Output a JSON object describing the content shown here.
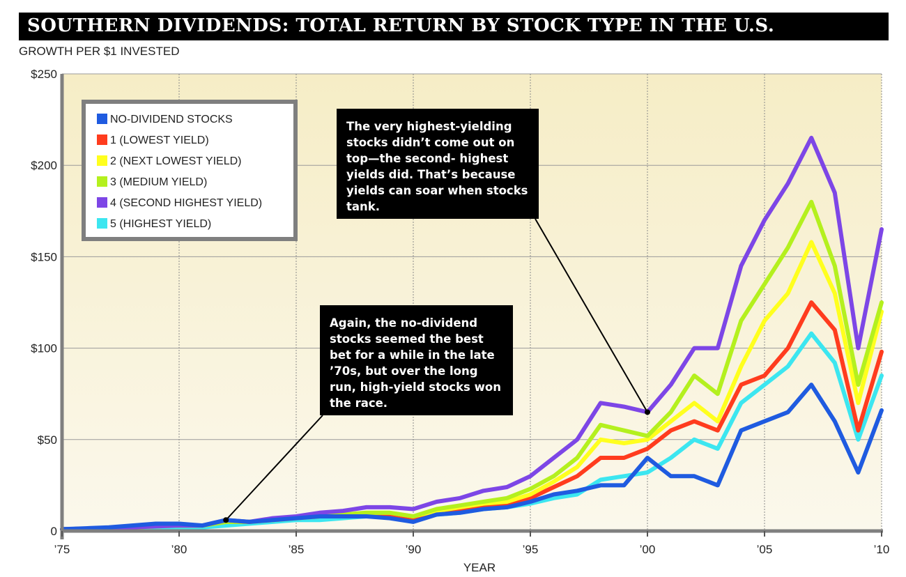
{
  "title": "SOUTHERN DIVIDENDS: TOTAL RETURN BY STOCK TYPE IN THE U.S.",
  "subtitle": "GROWTH PER $1 INVESTED",
  "annotations": {
    "top": "The very highest-yielding stocks didn’t come out on top—the second- highest yields did. That’s because yields can soar when stocks tank.",
    "bottom": "Again, the no-dividend stocks seemed the best bet for a while in the late ’70s, but over the long run, high-yield stocks won the race."
  },
  "chart_data": {
    "type": "line",
    "xlabel": "YEAR",
    "ylabel": "",
    "xlim": [
      1975,
      2010
    ],
    "ylim": [
      0,
      250
    ],
    "grid": true,
    "legend_position": "top-left",
    "x_ticks": [
      {
        "value": 1975,
        "label": "'75"
      },
      {
        "value": 1980,
        "label": "'80"
      },
      {
        "value": 1985,
        "label": "'85"
      },
      {
        "value": 1990,
        "label": "'90"
      },
      {
        "value": 1995,
        "label": "'95"
      },
      {
        "value": 2000,
        "label": "'00"
      },
      {
        "value": 2005,
        "label": "'05"
      },
      {
        "value": 2010,
        "label": "'10"
      }
    ],
    "y_ticks": [
      {
        "value": 0,
        "label": "0"
      },
      {
        "value": 50,
        "label": "$50"
      },
      {
        "value": 100,
        "label": "$100"
      },
      {
        "value": 150,
        "label": "$150"
      },
      {
        "value": 200,
        "label": "$200"
      },
      {
        "value": 250,
        "label": "$250"
      }
    ],
    "x": [
      1975,
      1976,
      1977,
      1978,
      1979,
      1980,
      1981,
      1982,
      1983,
      1984,
      1985,
      1986,
      1987,
      1988,
      1989,
      1990,
      1991,
      1992,
      1993,
      1994,
      1995,
      1996,
      1997,
      1998,
      1999,
      2000,
      2001,
      2002,
      2003,
      2004,
      2005,
      2006,
      2007,
      2008,
      2009,
      2010
    ],
    "series": [
      {
        "name": "NO-DIVIDEND STOCKS",
        "color": "#1f5be0",
        "values": [
          1,
          1.5,
          2,
          3,
          4,
          4,
          3,
          6,
          5,
          6,
          7,
          8,
          8,
          8,
          7,
          5,
          9,
          10,
          12,
          13,
          16,
          20,
          22,
          25,
          25,
          40,
          30,
          30,
          25,
          55,
          60,
          65,
          80,
          60,
          32,
          66
        ]
      },
      {
        "name": "1 (LOWEST YIELD)",
        "color": "#ff3c1e",
        "values": [
          1,
          1.3,
          1.6,
          2,
          2.5,
          3,
          3,
          5,
          5,
          6,
          7,
          8,
          8,
          9,
          9,
          7,
          10,
          12,
          14,
          15,
          18,
          24,
          30,
          40,
          40,
          45,
          55,
          60,
          55,
          80,
          85,
          100,
          125,
          110,
          55,
          98
        ]
      },
      {
        "name": "2 (NEXT LOWEST YIELD)",
        "color": "#ffff1e",
        "values": [
          1,
          1.3,
          1.6,
          2,
          2.5,
          3,
          3,
          5,
          5,
          6,
          7,
          8,
          9,
          10,
          10,
          8,
          11,
          13,
          15,
          16,
          20,
          27,
          35,
          50,
          48,
          50,
          60,
          70,
          60,
          90,
          115,
          130,
          158,
          130,
          70,
          120
        ]
      },
      {
        "name": "3 (MEDIUM YIELD)",
        "color": "#b4f01e",
        "values": [
          1,
          1.3,
          1.6,
          2,
          2.5,
          3,
          3,
          5,
          5,
          6,
          7,
          8,
          9,
          10,
          10,
          8,
          12,
          14,
          16,
          18,
          23,
          30,
          40,
          58,
          55,
          52,
          65,
          85,
          75,
          115,
          135,
          155,
          180,
          145,
          80,
          125
        ]
      },
      {
        "name": "4 (SECOND HIGHEST YIELD)",
        "color": "#7d46e6",
        "values": [
          1,
          1.3,
          1.6,
          2,
          2.5,
          3,
          3,
          6,
          5,
          7,
          8,
          10,
          11,
          13,
          13,
          12,
          16,
          18,
          22,
          24,
          30,
          40,
          50,
          70,
          68,
          65,
          80,
          100,
          100,
          145,
          170,
          190,
          215,
          185,
          100,
          165
        ]
      },
      {
        "name": "5 (HIGHEST YIELD)",
        "color": "#3ce6f0",
        "values": [
          1,
          1.2,
          1.4,
          1.6,
          1.8,
          2,
          2,
          3,
          4,
          5,
          6,
          6,
          7,
          8,
          8,
          6,
          9,
          10,
          12,
          13,
          15,
          18,
          20,
          28,
          30,
          32,
          40,
          50,
          45,
          70,
          80,
          90,
          108,
          92,
          50,
          85
        ]
      }
    ]
  },
  "legend": {
    "items": [
      {
        "label": "NO-DIVIDEND STOCKS",
        "color": "#1f5be0"
      },
      {
        "label": "1 (LOWEST YIELD)",
        "color": "#ff3c1e"
      },
      {
        "label": "2 (NEXT LOWEST YIELD)",
        "color": "#ffff1e"
      },
      {
        "label": "3 (MEDIUM YIELD)",
        "color": "#b4f01e"
      },
      {
        "label": "4 (SECOND HIGHEST YIELD)",
        "color": "#7d46e6"
      },
      {
        "label": "5 (HIGHEST YIELD)",
        "color": "#3ce6f0"
      }
    ]
  },
  "colors": {
    "plot_background": "#f6efcf",
    "axis": "#7f7f7f",
    "title_background": "#000000",
    "title_text": "#ffffff"
  }
}
